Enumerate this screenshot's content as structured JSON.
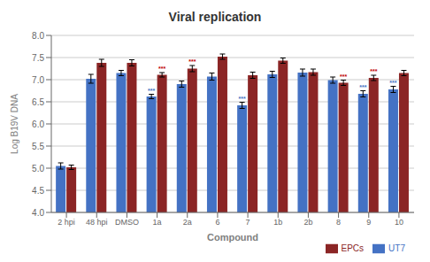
{
  "chart_data": {
    "type": "bar",
    "title": "Viral replication",
    "xlabel": "Compound",
    "ylabel": "Log B19V DNA",
    "categories": [
      "2 hpi",
      "48 hpi",
      "DMSO",
      "1a",
      "2a",
      "6",
      "7",
      "1b",
      "2b",
      "8",
      "9",
      "10"
    ],
    "series": [
      {
        "name": "UT7",
        "color": "#4472C4",
        "values": [
          5.05,
          7.02,
          7.15,
          6.62,
          6.9,
          7.07,
          6.42,
          7.12,
          7.16,
          6.99,
          6.68,
          6.78
        ],
        "errors": [
          0.07,
          0.1,
          0.06,
          0.05,
          0.07,
          0.08,
          0.07,
          0.07,
          0.08,
          0.07,
          0.07,
          0.07
        ]
      },
      {
        "name": "EPCs",
        "color": "#8B2525",
        "values": [
          5.02,
          7.38,
          7.38,
          7.11,
          7.25,
          7.52,
          7.1,
          7.43,
          7.17,
          6.93,
          7.04,
          7.15
        ],
        "errors": [
          0.05,
          0.08,
          0.07,
          0.05,
          0.07,
          0.06,
          0.07,
          0.06,
          0.07,
          0.06,
          0.06,
          0.06
        ]
      }
    ],
    "ylim": [
      4.0,
      8.0
    ],
    "yticks": [
      {
        "value": 4,
        "label": "4.0"
      },
      4.5,
      {
        "value": 5,
        "label": "5.0"
      },
      5.5,
      {
        "value": 6,
        "label": "6.0"
      },
      6.5,
      {
        "value": 7,
        "label": "7.0"
      },
      7.5,
      {
        "value": 8,
        "label": "8.0"
      }
    ],
    "grid": true,
    "legend": "lower right",
    "annotations": [
      {
        "text": "***",
        "category": "1a",
        "series": "UT7",
        "color": "#4472C4"
      },
      {
        "text": "***",
        "category": "7",
        "series": "UT7",
        "color": "#4472C4"
      },
      {
        "text": "***",
        "category": "9",
        "series": "UT7",
        "color": "#4472C4"
      },
      {
        "text": "***",
        "category": "10",
        "series": "UT7",
        "color": "#4472C4"
      },
      {
        "text": "***",
        "category": "1a",
        "series": "EPCs",
        "color": "#C00000"
      },
      {
        "text": "***",
        "category": "2a",
        "series": "EPCs",
        "color": "#C00000"
      },
      {
        "text": "***",
        "category": "8",
        "series": "EPCs",
        "color": "#C00000"
      },
      {
        "text": "***",
        "category": "9",
        "series": "EPCs",
        "color": "#C00000"
      }
    ]
  }
}
